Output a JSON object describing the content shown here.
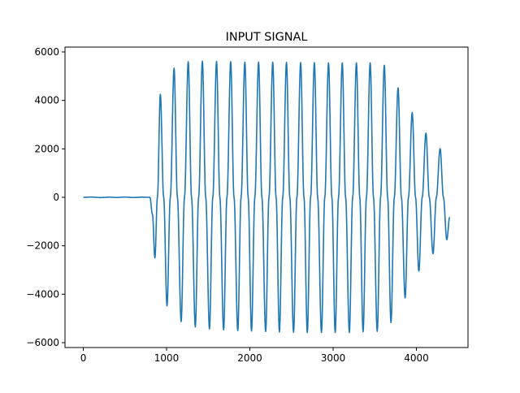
{
  "chart_data": {
    "type": "line",
    "title": "INPUT SIGNAL",
    "xlabel": "",
    "ylabel": "",
    "xlim": [
      -220,
      4620
    ],
    "ylim": [
      -6200,
      6200
    ],
    "x_ticks": [
      0,
      1000,
      2000,
      3000,
      4000
    ],
    "x_tick_labels": [
      "0",
      "1000",
      "2000",
      "3000",
      "4000"
    ],
    "y_ticks": [
      -6000,
      -4000,
      -2000,
      0,
      2000,
      4000,
      6000
    ],
    "y_tick_labels": [
      "−6000",
      "−4000",
      "−2000",
      "0",
      "2000",
      "4000",
      "6000"
    ],
    "grid": false,
    "series": [
      {
        "color": "#1f77b4",
        "x_range": [
          0,
          4400
        ],
        "points": [
          [
            0,
            0
          ],
          [
            100,
            10
          ],
          [
            200,
            -10
          ],
          [
            300,
            5
          ],
          [
            400,
            -5
          ],
          [
            500,
            10
          ],
          [
            600,
            -8
          ],
          [
            700,
            6
          ],
          [
            800,
            0
          ],
          [
            830,
            -700
          ],
          [
            860,
            -2500
          ],
          [
            890,
            0
          ],
          [
            925,
            4250
          ],
          [
            965,
            0
          ],
          [
            1005,
            -4480
          ],
          [
            1045,
            0
          ],
          [
            1090,
            5330
          ],
          [
            1130,
            0
          ],
          [
            1175,
            -5130
          ],
          [
            1215,
            0
          ],
          [
            1260,
            5600
          ],
          [
            1300,
            0
          ],
          [
            1345,
            -5350
          ],
          [
            1385,
            0
          ],
          [
            1430,
            5620
          ],
          [
            1470,
            0
          ],
          [
            1515,
            -5430
          ],
          [
            1555,
            0
          ],
          [
            1600,
            5610
          ],
          [
            1640,
            0
          ],
          [
            1685,
            -5470
          ],
          [
            1725,
            0
          ],
          [
            1770,
            5600
          ],
          [
            1810,
            0
          ],
          [
            1855,
            -5500
          ],
          [
            1895,
            0
          ],
          [
            1940,
            5580
          ],
          [
            1980,
            0
          ],
          [
            2020,
            -5520
          ],
          [
            2060,
            0
          ],
          [
            2105,
            5580
          ],
          [
            2145,
            0
          ],
          [
            2190,
            -5540
          ],
          [
            2230,
            0
          ],
          [
            2275,
            5580
          ],
          [
            2315,
            0
          ],
          [
            2355,
            -5560
          ],
          [
            2395,
            0
          ],
          [
            2440,
            5570
          ],
          [
            2480,
            0
          ],
          [
            2525,
            -5570
          ],
          [
            2565,
            0
          ],
          [
            2610,
            5560
          ],
          [
            2650,
            0
          ],
          [
            2690,
            -5580
          ],
          [
            2730,
            0
          ],
          [
            2775,
            5560
          ],
          [
            2815,
            0
          ],
          [
            2860,
            -5580
          ],
          [
            2900,
            0
          ],
          [
            2945,
            5550
          ],
          [
            2985,
            0
          ],
          [
            3025,
            -5580
          ],
          [
            3065,
            0
          ],
          [
            3110,
            5550
          ],
          [
            3150,
            0
          ],
          [
            3195,
            -5580
          ],
          [
            3235,
            0
          ],
          [
            3280,
            5550
          ],
          [
            3320,
            0
          ],
          [
            3360,
            -5550
          ],
          [
            3400,
            0
          ],
          [
            3445,
            5550
          ],
          [
            3485,
            0
          ],
          [
            3530,
            -5530
          ],
          [
            3570,
            0
          ],
          [
            3615,
            5450
          ],
          [
            3655,
            0
          ],
          [
            3695,
            -5170
          ],
          [
            3735,
            0
          ],
          [
            3780,
            4520
          ],
          [
            3820,
            0
          ],
          [
            3865,
            -4150
          ],
          [
            3905,
            0
          ],
          [
            3950,
            3500
          ],
          [
            3990,
            0
          ],
          [
            4030,
            -3050
          ],
          [
            4070,
            0
          ],
          [
            4115,
            2650
          ],
          [
            4155,
            0
          ],
          [
            4200,
            -2330
          ],
          [
            4240,
            0
          ],
          [
            4285,
            2010
          ],
          [
            4325,
            0
          ],
          [
            4365,
            -1750
          ],
          [
            4400,
            -820
          ]
        ]
      }
    ]
  }
}
